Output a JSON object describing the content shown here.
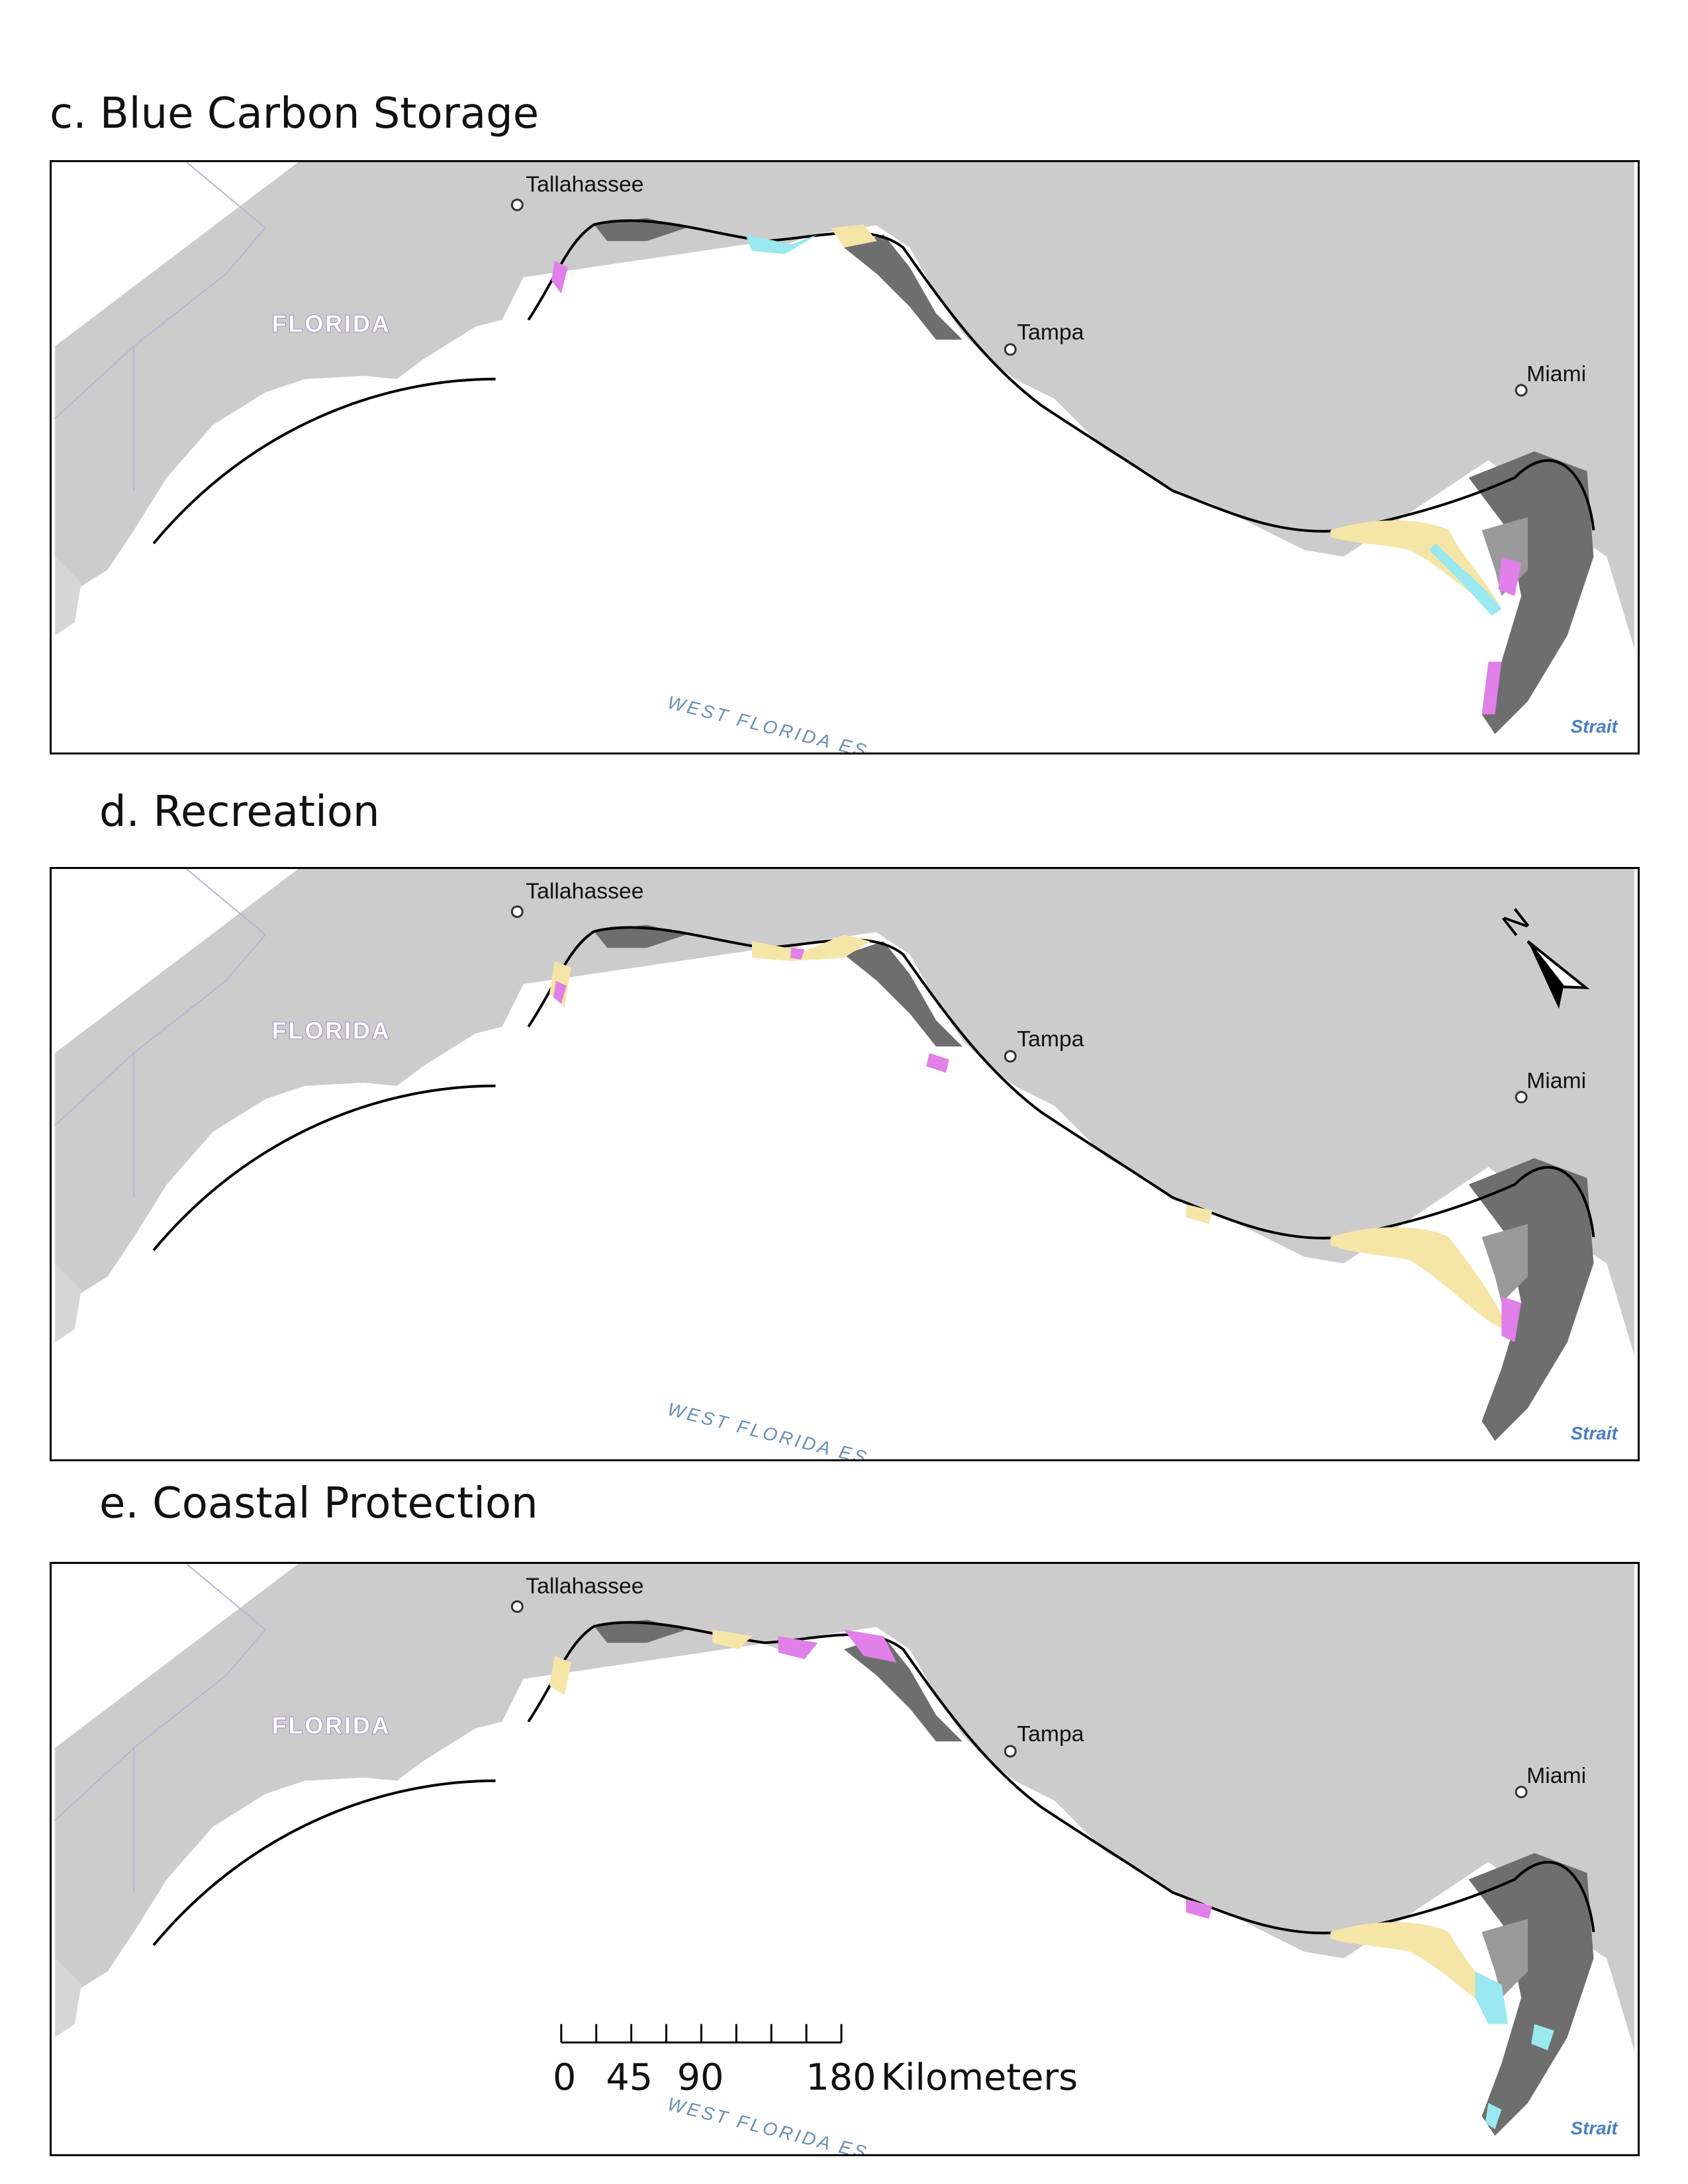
{
  "panels": [
    {
      "title": "c. Blue Carbon Storage",
      "key": "c"
    },
    {
      "title": "d. Recreation",
      "key": "d"
    },
    {
      "title": "e. Coastal Protection",
      "key": "e"
    }
  ],
  "map": {
    "state_label": "FLORIDA",
    "cities": {
      "tallahassee": "Tallahassee",
      "tampa": "Tampa",
      "miami": "Miami"
    },
    "sea_label": "WEST FLORIDA ES",
    "strait_label": "Strait"
  },
  "north_arrow": {
    "letter": "N"
  },
  "scale_bar": {
    "ticks": [
      "0",
      "45",
      "90",
      "180"
    ],
    "unit": "Kilometers"
  },
  "colors": {
    "land": "#cccccc",
    "coast_zone": "#6e6e6e",
    "high_value": "#e080e8",
    "mid_value": "#f5e6a8",
    "low_value": "#9ae8f0",
    "coastline": "#000000"
  }
}
